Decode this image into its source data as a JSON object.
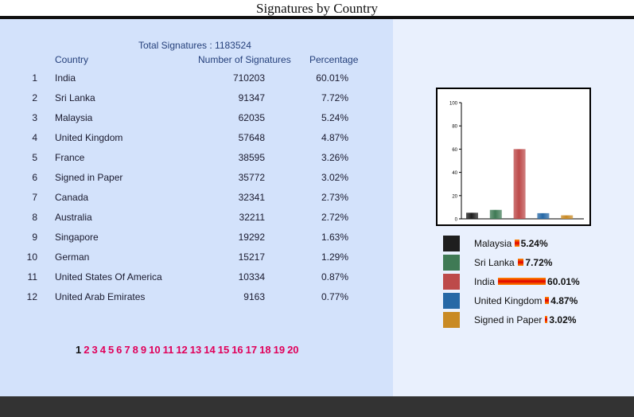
{
  "page": {
    "title": "Signatures by Country"
  },
  "table": {
    "total_label": "Total Signatures : 1183524",
    "headers": {
      "country": "Country",
      "count": "Number of Signatures",
      "pct": "Percentage"
    },
    "rows": [
      {
        "rank": "1",
        "country": "India",
        "count": "710203",
        "pct": "60.01%"
      },
      {
        "rank": "2",
        "country": "Sri Lanka",
        "count": "91347",
        "pct": "7.72%"
      },
      {
        "rank": "3",
        "country": "Malaysia",
        "count": "62035",
        "pct": "5.24%"
      },
      {
        "rank": "4",
        "country": "United Kingdom",
        "count": "57648",
        "pct": "4.87%"
      },
      {
        "rank": "5",
        "country": "France",
        "count": "38595",
        "pct": "3.26%"
      },
      {
        "rank": "6",
        "country": "Signed in Paper",
        "count": "35772",
        "pct": "3.02%"
      },
      {
        "rank": "7",
        "country": "Canada",
        "count": "32341",
        "pct": "2.73%"
      },
      {
        "rank": "8",
        "country": "Australia",
        "count": "32211",
        "pct": "2.72%"
      },
      {
        "rank": "9",
        "country": "Singapore",
        "count": "19292",
        "pct": "1.63%"
      },
      {
        "rank": "10",
        "country": "German",
        "count": "15217",
        "pct": "1.29%"
      },
      {
        "rank": "11",
        "country": "United States Of America",
        "count": "10334",
        "pct": "0.87%"
      },
      {
        "rank": "12",
        "country": "United Arab Emirates",
        "count": "9163",
        "pct": "0.77%"
      }
    ]
  },
  "pagination": {
    "current": "1",
    "pages": [
      "1",
      "2",
      "3",
      "4",
      "5",
      "6",
      "7",
      "8",
      "9",
      "10",
      "11",
      "12",
      "13",
      "14",
      "15",
      "16",
      "17",
      "18",
      "19",
      "20"
    ]
  },
  "chart_data": {
    "type": "bar",
    "categories": [
      "Malaysia",
      "Sri Lanka",
      "India",
      "United Kingdom",
      "Signed in Paper"
    ],
    "values": [
      5.24,
      7.72,
      60.01,
      4.87,
      3.02
    ],
    "colors": [
      "#1e1e1e",
      "#3f7a55",
      "#bd4a4a",
      "#2668a6",
      "#c98a24"
    ],
    "ylim": [
      0,
      100
    ],
    "yticks": [
      "0",
      "20",
      "40",
      "60",
      "80",
      "100"
    ],
    "grid": false,
    "legend": "below",
    "legend_bar_scale": 60.01
  },
  "legend": {
    "items": [
      {
        "label": "Malaysia",
        "pct": "5.24%",
        "value": 5.24,
        "color": "#1e1e1e"
      },
      {
        "label": "Sri Lanka",
        "pct": "7.72%",
        "value": 7.72,
        "color": "#3f7a55"
      },
      {
        "label": "India",
        "pct": "60.01%",
        "value": 60.01,
        "color": "#bd4a4a"
      },
      {
        "label": "United Kingdom",
        "pct": "4.87%",
        "value": 4.87,
        "color": "#2668a6"
      },
      {
        "label": "Signed in Paper",
        "pct": "3.02%",
        "value": 3.02,
        "color": "#c98a24"
      }
    ]
  }
}
